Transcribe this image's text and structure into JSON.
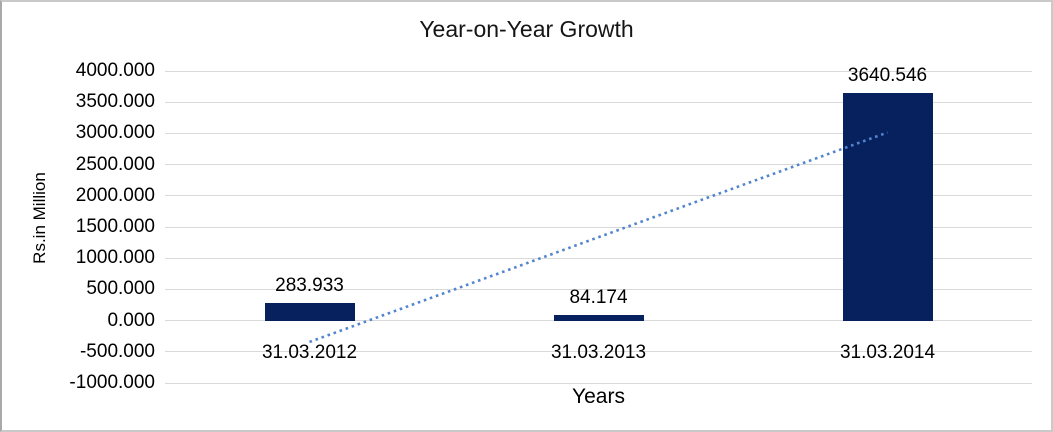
{
  "chart_data": {
    "type": "bar",
    "title": "Year-on-Year Growth",
    "xlabel": "Years",
    "ylabel": "Rs.in Million",
    "categories": [
      "31.03.2012",
      "31.03.2013",
      "31.03.2014"
    ],
    "values": [
      283.933,
      84.174,
      3640.546
    ],
    "data_labels": [
      "283.933",
      "84.174",
      "3640.546"
    ],
    "ylim": [
      -1000,
      4000
    ],
    "y_ticks": [
      {
        "value": 4000,
        "label": "4000.000"
      },
      {
        "value": 3500,
        "label": "3500.000"
      },
      {
        "value": 3000,
        "label": "3000.000"
      },
      {
        "value": 2500,
        "label": "2500.000"
      },
      {
        "value": 2000,
        "label": "2000.000"
      },
      {
        "value": 1500,
        "label": "1500.000"
      },
      {
        "value": 1000,
        "label": "1000.000"
      },
      {
        "value": 500,
        "label": "500.000"
      },
      {
        "value": 0,
        "label": "0.000"
      },
      {
        "value": -500,
        "label": "-500.000"
      },
      {
        "value": -1000,
        "label": "-1000.000"
      }
    ],
    "grid": true,
    "legend_position": "none",
    "bar_color": "#07215f",
    "gridline_color": "#d9d9d9",
    "text_color": "#000000",
    "trendline": {
      "type": "linear",
      "style": "dotted",
      "color": "#5285cd",
      "start_value": -342.1,
      "end_value": 3014.6
    }
  }
}
